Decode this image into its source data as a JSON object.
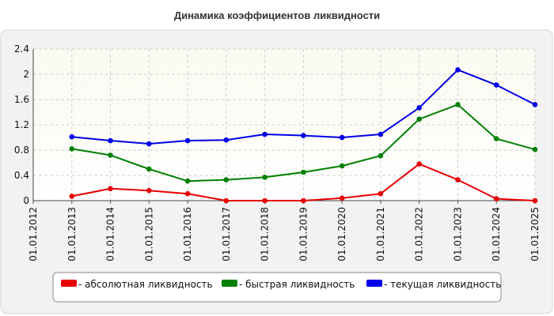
{
  "chart_data": {
    "type": "line",
    "title": "Динамика коэффициентов ликвидности",
    "categories": [
      "01.01.2012",
      "01.01.2013",
      "01.01.2014",
      "01.01.2015",
      "01.01.2016",
      "01.01.2017",
      "01.01.2018",
      "01.01.2019",
      "01.01.2020",
      "01.01.2021",
      "01.01.2022",
      "01.01.2023",
      "01.01.2024",
      "01.01.2025"
    ],
    "y_ticks": [
      "0",
      "0.4",
      "0.8",
      "1.2",
      "1.6",
      "2",
      "2.4"
    ],
    "ylim": [
      0,
      2.4
    ],
    "grid": true,
    "legend_position": "bottom",
    "series": [
      {
        "name": "- абсолютная ликвидность",
        "color": "#e80000",
        "values": [
          null,
          0.07,
          0.19,
          0.16,
          0.11,
          0.0,
          0.0,
          0.0,
          0.04,
          0.11,
          0.58,
          0.33,
          0.03,
          0.0
        ]
      },
      {
        "name": "- быстрая ликвидность",
        "color": "#008000",
        "values": [
          null,
          0.82,
          0.72,
          0.5,
          0.31,
          0.33,
          0.37,
          0.45,
          0.55,
          0.71,
          1.29,
          1.52,
          0.98,
          0.81
        ]
      },
      {
        "name": "- текущая ликвидность",
        "color": "#0000e8",
        "values": [
          null,
          1.01,
          0.95,
          0.9,
          0.95,
          0.96,
          1.05,
          1.03,
          1.0,
          1.05,
          1.47,
          2.07,
          1.83,
          1.52
        ]
      }
    ]
  }
}
